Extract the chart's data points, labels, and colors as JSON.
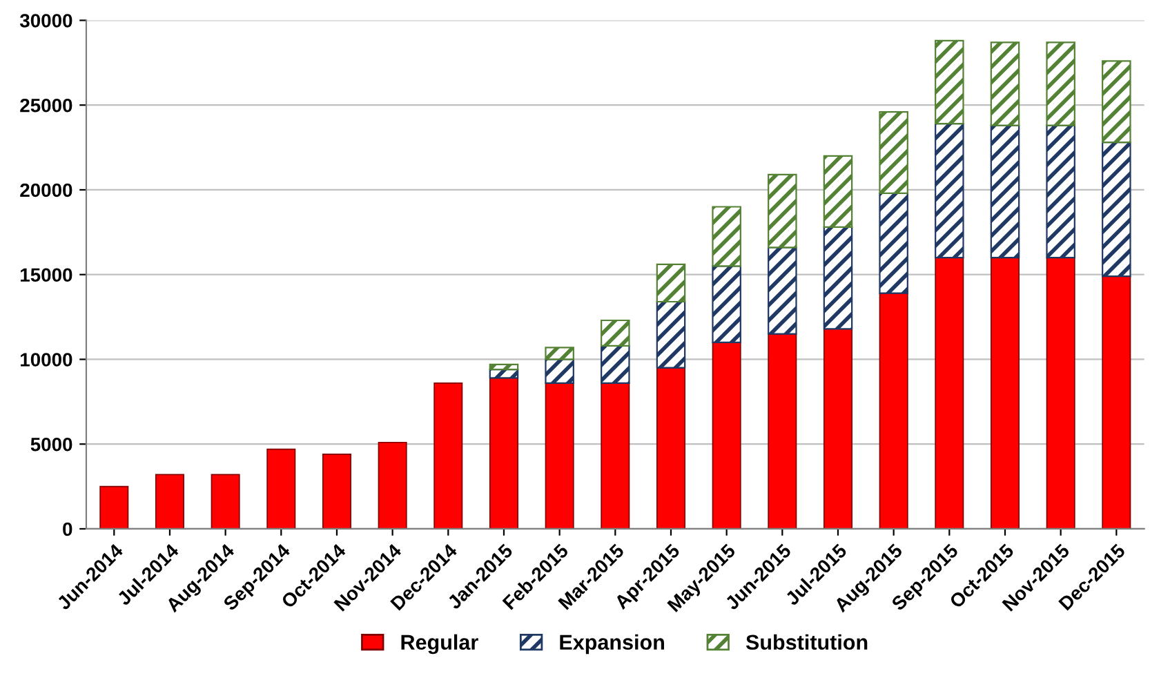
{
  "chart_data": {
    "type": "bar",
    "stacked": true,
    "categories": [
      "Jun-2014",
      "Jul-2014",
      "Aug-2014",
      "Sep-2014",
      "Oct-2014",
      "Nov-2014",
      "Dec-2014",
      "Jan-2015",
      "Feb-2015",
      "Mar-2015",
      "Apr-2015",
      "May-2015",
      "Jun-2015",
      "Jul-2015",
      "Aug-2015",
      "Sep-2015",
      "Oct-2015",
      "Nov-2015",
      "Dec-2015"
    ],
    "series": [
      {
        "name": "Regular",
        "color": "#ff0000",
        "values": [
          2500,
          3200,
          3200,
          4700,
          4400,
          5100,
          8600,
          8900,
          8600,
          8600,
          9500,
          11000,
          11500,
          11800,
          13900,
          16000,
          16000,
          16000,
          14900
        ]
      },
      {
        "name": "Expansion",
        "color": "#1f3864",
        "values": [
          null,
          null,
          null,
          null,
          null,
          null,
          null,
          500,
          1400,
          2200,
          3900,
          4500,
          5100,
          6000,
          5900,
          7900,
          7800,
          7800,
          7900
        ]
      },
      {
        "name": "Substitution",
        "color": "#548235",
        "values": [
          null,
          null,
          null,
          null,
          null,
          null,
          null,
          300,
          700,
          1500,
          2200,
          3500,
          4300,
          4200,
          4800,
          4900,
          4900,
          4900,
          4800
        ]
      }
    ],
    "ylim": [
      0,
      30000
    ],
    "yticks": [
      0,
      5000,
      10000,
      15000,
      20000,
      25000,
      30000
    ],
    "grid": "y",
    "legend": "bottom"
  }
}
